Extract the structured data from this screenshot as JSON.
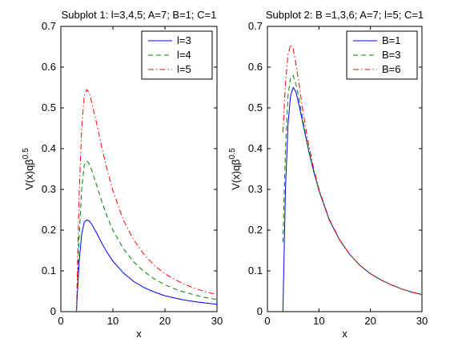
{
  "chart_data": [
    {
      "type": "line",
      "title": "Subplot 1: l=3,4,5; A=7; B=1; C=1",
      "xlabel": "x",
      "ylabel_base": "V(x)qβ",
      "ylabel_exp": "0.5",
      "xlim": [
        0,
        30
      ],
      "ylim": [
        0,
        0.7
      ],
      "xticks": [
        "0",
        "10",
        "20",
        "30"
      ],
      "yticks": [
        "0",
        "0.1",
        "0.2",
        "0.3",
        "0.4",
        "0.5",
        "0.6",
        "0.7"
      ],
      "grid": false,
      "legend_position": "top-right",
      "x": [
        3.0,
        3.5,
        4.0,
        4.5,
        5.0,
        5.5,
        6.0,
        7.0,
        8.0,
        9.0,
        10.0,
        12.0,
        14.0,
        16.0,
        18.0,
        20.0,
        22.0,
        24.0,
        26.0,
        28.0,
        30.0
      ],
      "series": [
        {
          "name": "l=3",
          "color": "#0000ff",
          "dash": "solid",
          "values": [
            0.0,
            0.12,
            0.19,
            0.22,
            0.225,
            0.222,
            0.213,
            0.19,
            0.165,
            0.143,
            0.124,
            0.095,
            0.074,
            0.059,
            0.048,
            0.039,
            0.033,
            0.028,
            0.024,
            0.021,
            0.018
          ]
        },
        {
          "name": "l=4",
          "color": "#008000",
          "dash": "dashed",
          "values": [
            0.0,
            0.18,
            0.3,
            0.36,
            0.37,
            0.362,
            0.345,
            0.305,
            0.265,
            0.23,
            0.2,
            0.155,
            0.122,
            0.098,
            0.08,
            0.066,
            0.055,
            0.047,
            0.04,
            0.034,
            0.03
          ]
        },
        {
          "name": "l=5",
          "color": "#ff0000",
          "dash": "dashdot",
          "values": [
            0.0,
            0.28,
            0.45,
            0.53,
            0.545,
            0.535,
            0.51,
            0.455,
            0.395,
            0.343,
            0.297,
            0.225,
            0.176,
            0.14,
            0.113,
            0.093,
            0.078,
            0.066,
            0.056,
            0.048,
            0.042
          ]
        }
      ]
    },
    {
      "type": "line",
      "title": "Subplot 2: B =1,3,6; A=7; l=5; C=1",
      "xlabel": "x",
      "ylabel_base": "V(x)qβ",
      "ylabel_exp": "0.5",
      "xlim": [
        0,
        30
      ],
      "ylim": [
        0,
        0.7
      ],
      "xticks": [
        "0",
        "10",
        "20",
        "30"
      ],
      "yticks": [
        "0",
        "0.1",
        "0.2",
        "0.3",
        "0.4",
        "0.5",
        "0.6",
        "0.7"
      ],
      "grid": false,
      "legend_position": "top-right",
      "x": [
        3.0,
        3.5,
        4.0,
        4.5,
        5.0,
        5.5,
        6.0,
        7.0,
        8.0,
        9.0,
        10.0,
        12.0,
        14.0,
        16.0,
        18.0,
        20.0,
        22.0,
        24.0,
        26.0,
        28.0,
        30.0
      ],
      "series": [
        {
          "name": "B=1",
          "color": "#0000ff",
          "dash": "solid",
          "values": [
            0.0,
            0.3,
            0.46,
            0.53,
            0.55,
            0.54,
            0.515,
            0.455,
            0.395,
            0.343,
            0.297,
            0.225,
            0.176,
            0.14,
            0.113,
            0.093,
            0.078,
            0.066,
            0.056,
            0.048,
            0.042
          ]
        },
        {
          "name": "B=3",
          "color": "#008000",
          "dash": "dashed",
          "values": [
            0.17,
            0.4,
            0.53,
            0.575,
            0.58,
            0.56,
            0.53,
            0.462,
            0.398,
            0.345,
            0.298,
            0.226,
            0.176,
            0.14,
            0.113,
            0.093,
            0.078,
            0.066,
            0.056,
            0.048,
            0.042
          ]
        },
        {
          "name": "B=6",
          "color": "#ff0000",
          "dash": "dashdot",
          "values": [
            0.44,
            0.56,
            0.63,
            0.655,
            0.645,
            0.61,
            0.57,
            0.483,
            0.41,
            0.35,
            0.301,
            0.227,
            0.177,
            0.14,
            0.113,
            0.093,
            0.078,
            0.066,
            0.056,
            0.048,
            0.042
          ]
        }
      ]
    }
  ]
}
